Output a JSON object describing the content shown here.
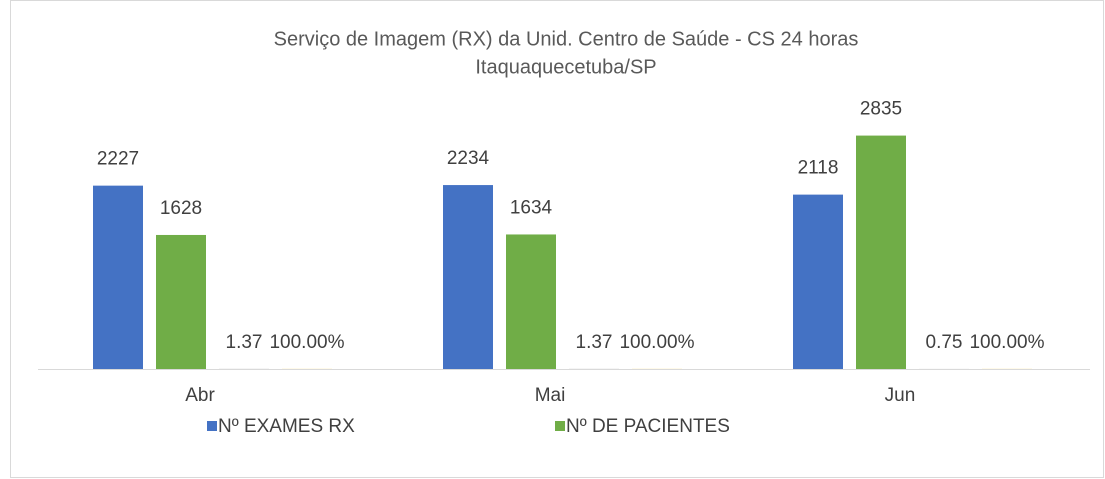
{
  "chart_data": {
    "type": "bar",
    "title": "Serviço de Imagem (RX) da Unid. Centro de Saúde - CS 24 horas",
    "subtitle": "Itaquaquecetuba/SP",
    "categories": [
      "Abr",
      "Mai",
      "Jun"
    ],
    "series": [
      {
        "name": "Nº EXAMES RX",
        "color": "#4472c4",
        "values": [
          2227,
          2234,
          2118
        ]
      },
      {
        "name": "Nº DE PACIENTES",
        "color": "#70ad47",
        "values": [
          1628,
          1634,
          2835
        ]
      },
      {
        "color": "#a5a5a5",
        "values": [
          1.37,
          1.37,
          0.75
        ]
      },
      {
        "color": "#ffc000",
        "values": [
          1,
          1,
          1
        ],
        "value_labels": [
          "100.00%",
          "100.00%",
          "100.00%"
        ]
      }
    ],
    "ylim": [
      0,
      3000
    ],
    "legend": "bottom"
  }
}
